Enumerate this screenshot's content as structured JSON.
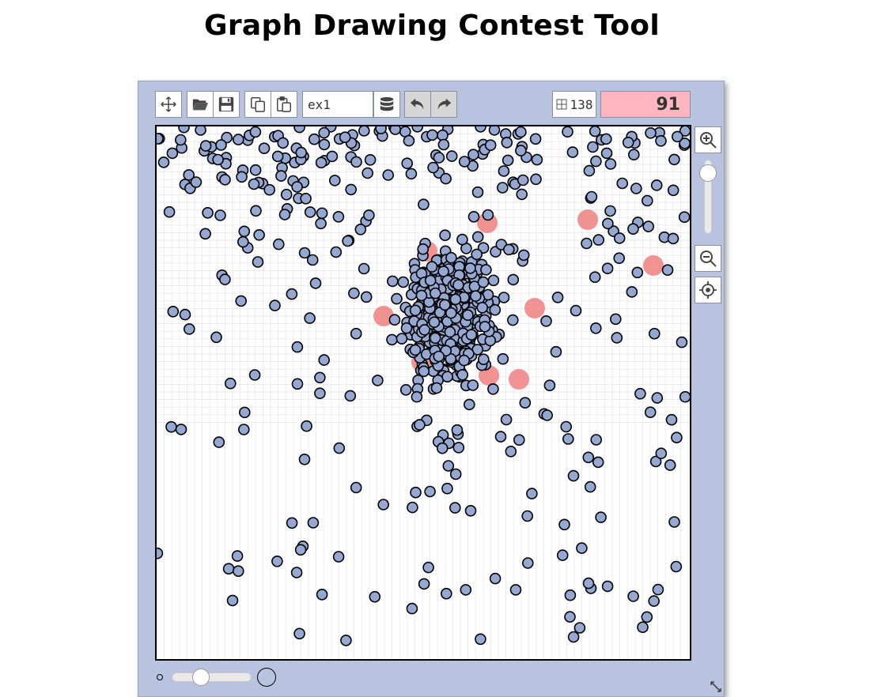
{
  "page": {
    "title": "Graph Drawing Contest Tool"
  },
  "toolbar": {
    "buttons": [
      {
        "name": "move-button",
        "icon": "move-icon"
      },
      {
        "name": "open-button",
        "icon": "folder-open-icon"
      },
      {
        "name": "save-button",
        "icon": "floppy-disk-icon"
      },
      {
        "name": "copy-button",
        "icon": "copy-icon"
      },
      {
        "name": "paste-button",
        "icon": "paste-icon"
      },
      {
        "name": "database-button",
        "icon": "database-icon"
      },
      {
        "name": "undo-button",
        "icon": "undo-icon"
      },
      {
        "name": "redo-button",
        "icon": "redo-icon"
      }
    ],
    "example_value": "ex1",
    "vertex_count": "138",
    "score": "91",
    "score_color": "#ffb6c1"
  },
  "sidebar": {
    "zoom_in_icon": "zoom-in-icon",
    "zoom_out_icon": "zoom-out-icon",
    "center_icon": "crosshair-icon",
    "zoom_level": 0.08
  },
  "bottom": {
    "vertex_size_level": 0.33
  },
  "colors": {
    "vertex_fill": "#94a8d2",
    "vertex_stroke": "#000000",
    "crossing_highlight": "#f08080",
    "panel_bg": "#b8c4df",
    "grid_line": "#e3e3e3"
  }
}
